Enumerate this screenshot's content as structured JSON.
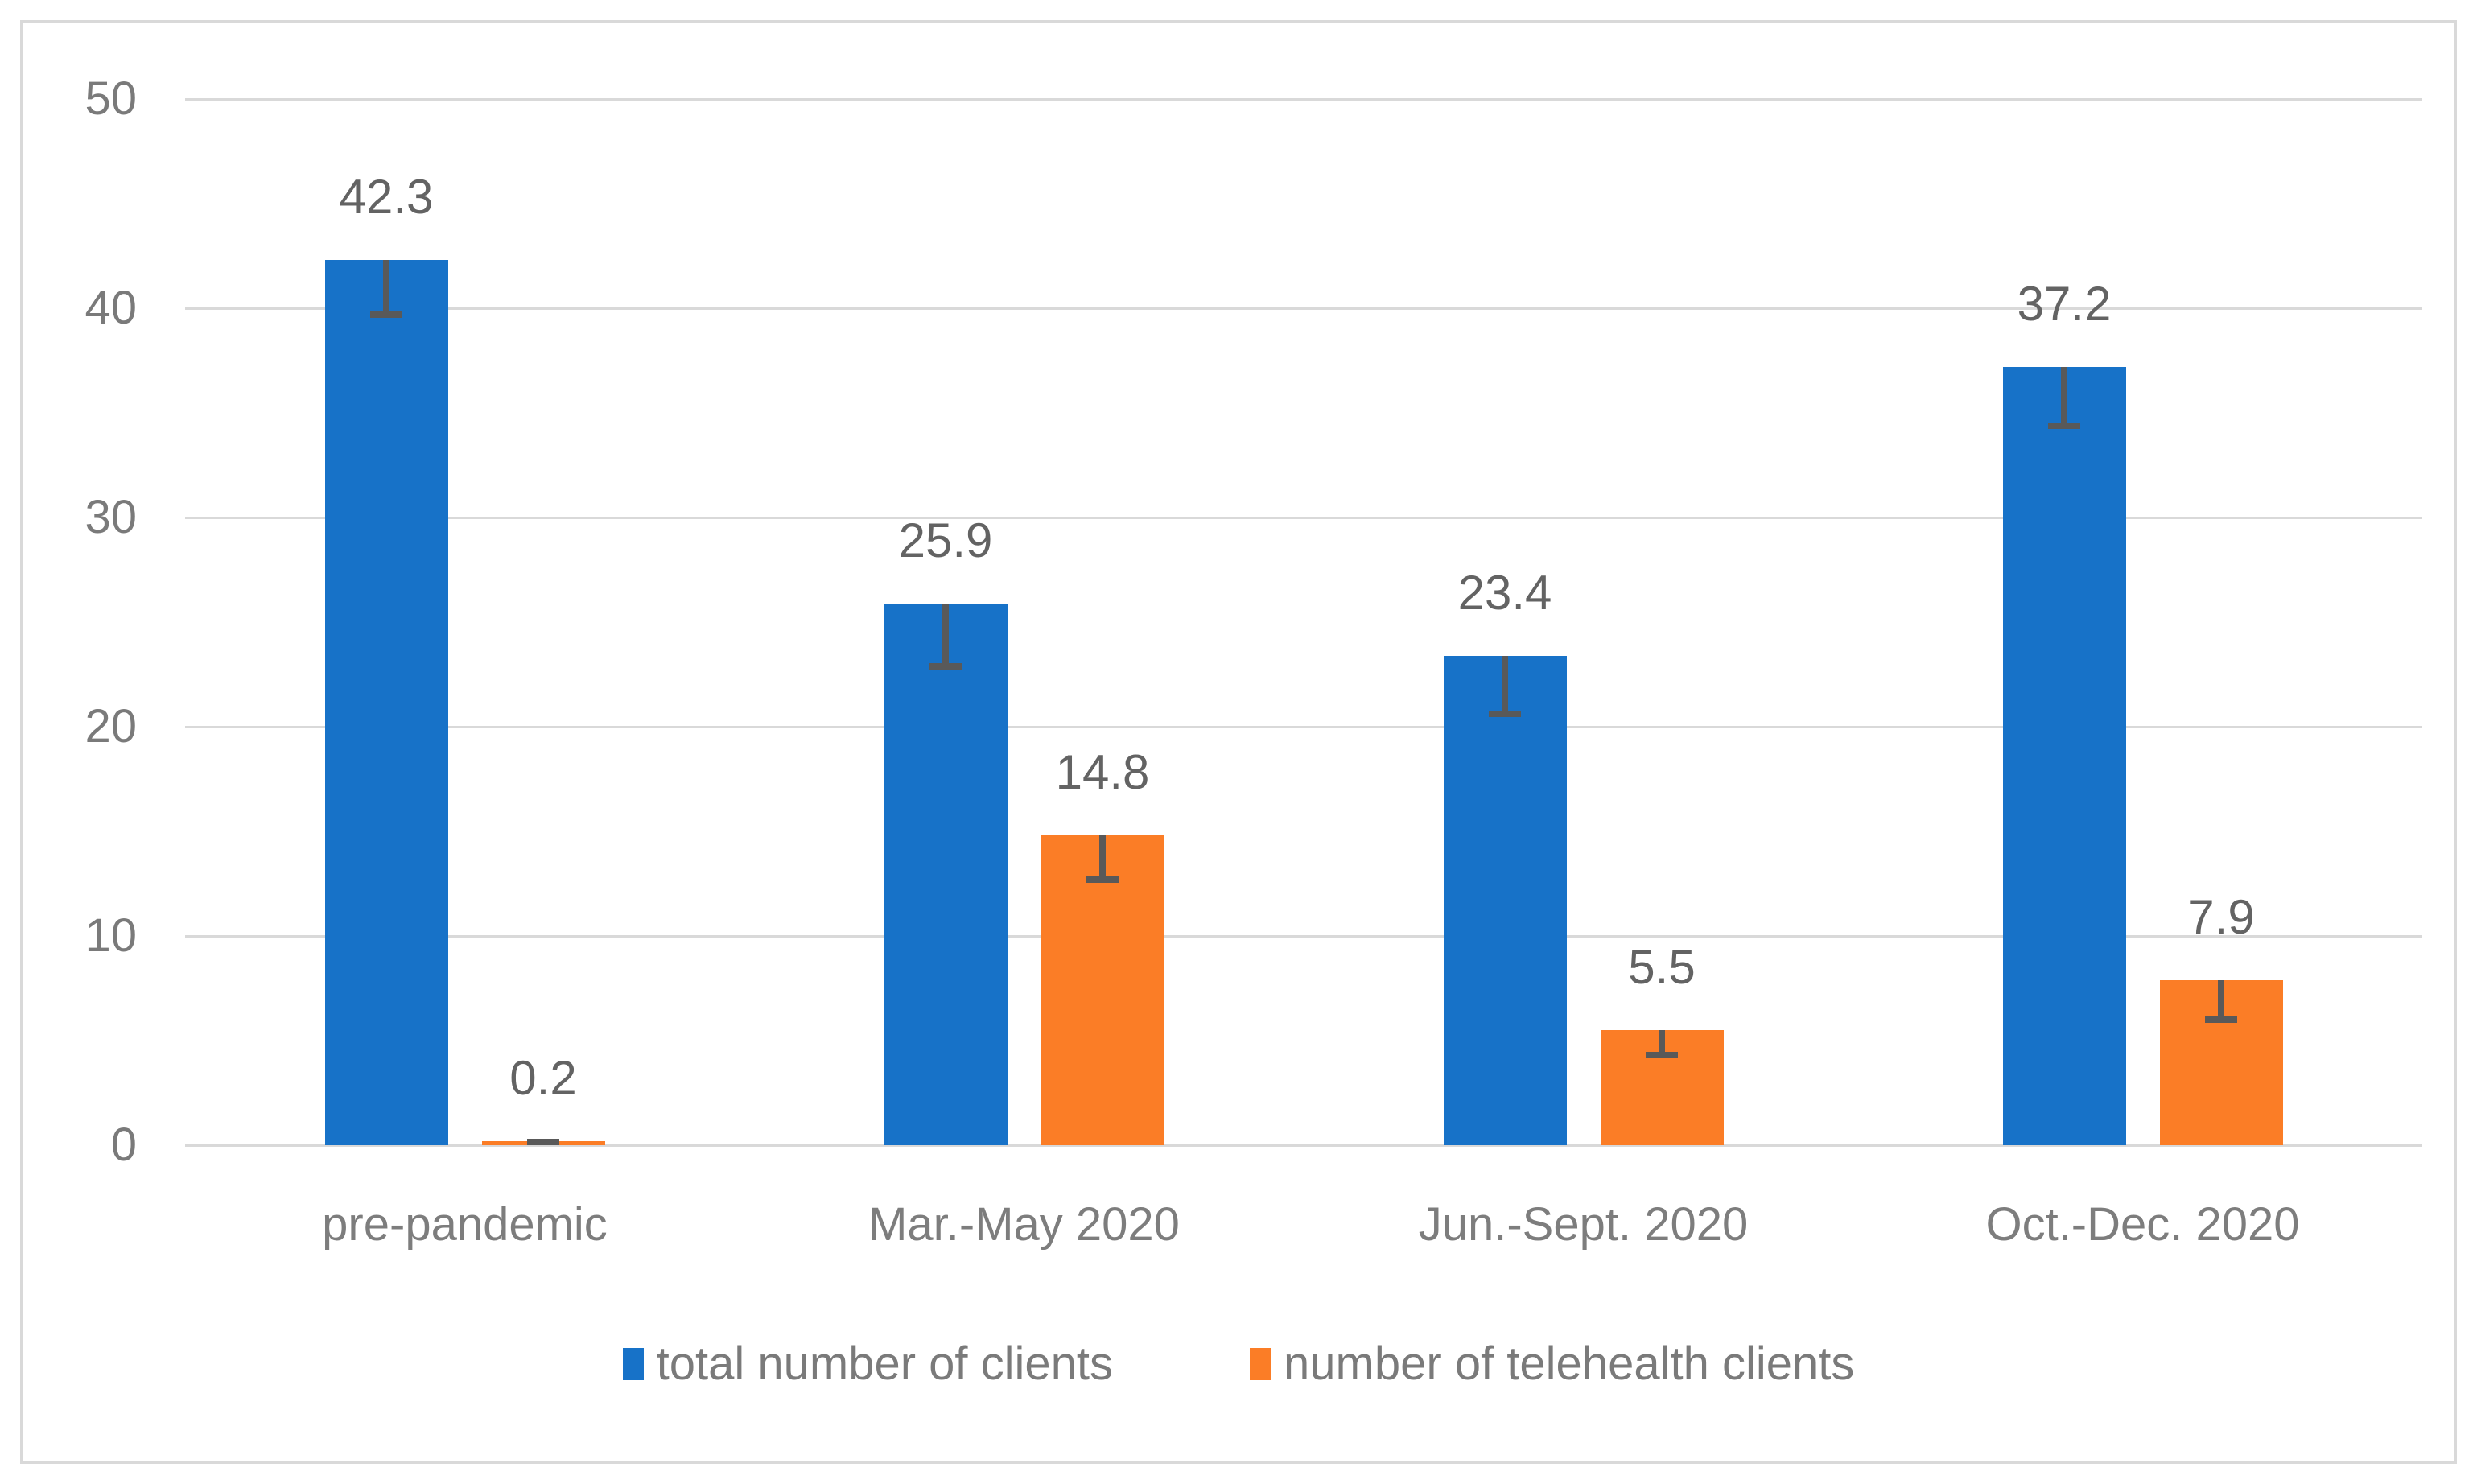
{
  "chart_data": {
    "type": "bar",
    "title": "",
    "categories": [
      "pre-pandemic",
      "Mar.-May 2020",
      "Jun.-Sept. 2020",
      "Oct.-Dec. 2020"
    ],
    "series": [
      {
        "name": "total number of clients",
        "color": "#1772C8",
        "values": [
          42.3,
          25.9,
          23.4,
          37.2
        ],
        "error_minus": [
          2.6,
          3.0,
          2.8,
          2.8
        ]
      },
      {
        "name": "number of telehealth clients",
        "color": "#FB7D26",
        "values": [
          0.2,
          14.8,
          5.5,
          7.9
        ],
        "error_minus": [
          0.1,
          2.1,
          1.2,
          1.9
        ]
      }
    ],
    "data_labels": [
      "42.3",
      "25.9",
      "23.4",
      "37.2",
      "0.2",
      "14.8",
      "5.5",
      "7.9"
    ],
    "ylim": [
      0,
      50
    ],
    "ytick_interval": 10,
    "ytick_labels": [
      "0",
      "10",
      "20",
      "30",
      "40",
      "50"
    ],
    "xlabel": "",
    "ylabel": "",
    "grid": true,
    "legend_position": "bottom",
    "error_bar_direction": "minus"
  },
  "theme": {
    "background": "#FFFFFF",
    "frame_color": "#D9D9D9",
    "gridline_color": "#D9D9D9",
    "axis_text_color": "#7A7A7A",
    "category_text_color": "#7D7D7D",
    "data_label_color": "#636363",
    "error_bar_color": "#595959",
    "legend_text_color": "#7A7A7A"
  }
}
